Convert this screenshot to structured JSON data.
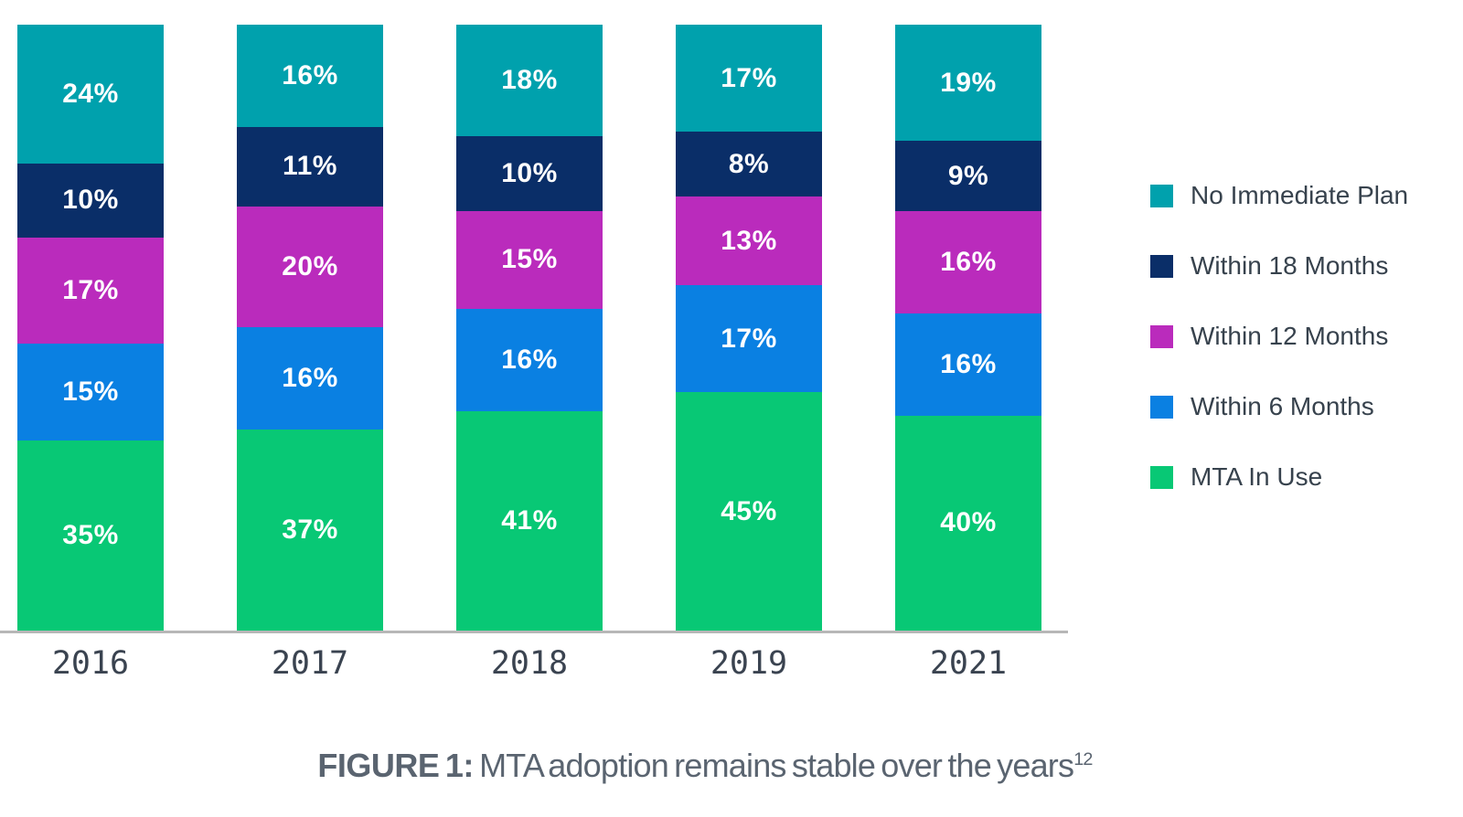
{
  "chart_data": {
    "type": "bar",
    "stacked": true,
    "orientation": "vertical",
    "value_format": "percent",
    "grid": false,
    "legend_position": "right",
    "ylim": [
      0,
      100
    ],
    "categories": [
      "2016",
      "2017",
      "2018",
      "2019",
      "2021"
    ],
    "series": [
      {
        "name": "No Immediate Plan",
        "color": "#00A1AD",
        "values": [
          24,
          16,
          18,
          17,
          19
        ]
      },
      {
        "name": "Within 18 Months",
        "color": "#0A2E68",
        "values": [
          10,
          11,
          10,
          8,
          9
        ]
      },
      {
        "name": "Within 12 Months",
        "color": "#BA2BBC",
        "values": [
          17,
          20,
          15,
          13,
          16
        ]
      },
      {
        "name": "Within 6 Months",
        "color": "#0A80E2",
        "values": [
          15,
          16,
          16,
          17,
          16
        ]
      },
      {
        "name": "MTA In Use",
        "color": "#08C875",
        "values": [
          35,
          37,
          41,
          45,
          40
        ]
      }
    ],
    "caption": "FIGURE 1: MTA adoption remains stable over the years"
  },
  "caption": {
    "prefix": "FIGURE 1:",
    "text": " MTA adoption remains stable over the years",
    "superscript": "12"
  },
  "colors": {
    "background": "#FFFFFF",
    "axis_line": "#B7B7B7",
    "segment_label_text": "#FFFFFF",
    "legend_text": "#37424D",
    "year_label_text": "#3A4350",
    "caption_text": "#5A6470"
  }
}
